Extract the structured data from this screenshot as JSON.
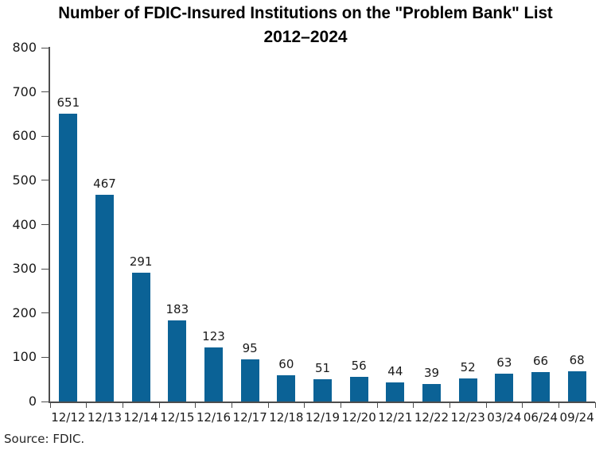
{
  "chart_data": {
    "type": "bar",
    "title": "Number of FDIC-Insured Institutions on the \"Problem Bank\" List 2012–2024",
    "title_line1": "Number of FDIC-Insured Institutions on the \"Problem Bank\" List",
    "title_line2": "2012–2024",
    "categories": [
      "12/12",
      "12/13",
      "12/14",
      "12/15",
      "12/16",
      "12/17",
      "12/18",
      "12/19",
      "12/20",
      "12/21",
      "12/22",
      "12/23",
      "03/24",
      "06/24",
      "09/24"
    ],
    "values": [
      651,
      467,
      291,
      183,
      123,
      95,
      60,
      51,
      56,
      44,
      39,
      52,
      63,
      66,
      68
    ],
    "xlabel": "",
    "ylabel": "",
    "ylim": [
      0,
      800
    ],
    "ytick_interval": 100,
    "grid": false,
    "legend": false,
    "bar_color": "#0b6296",
    "axis_color": "#4d4d4d",
    "text_color": "#1a1a1a",
    "source": "Source: FDIC."
  }
}
